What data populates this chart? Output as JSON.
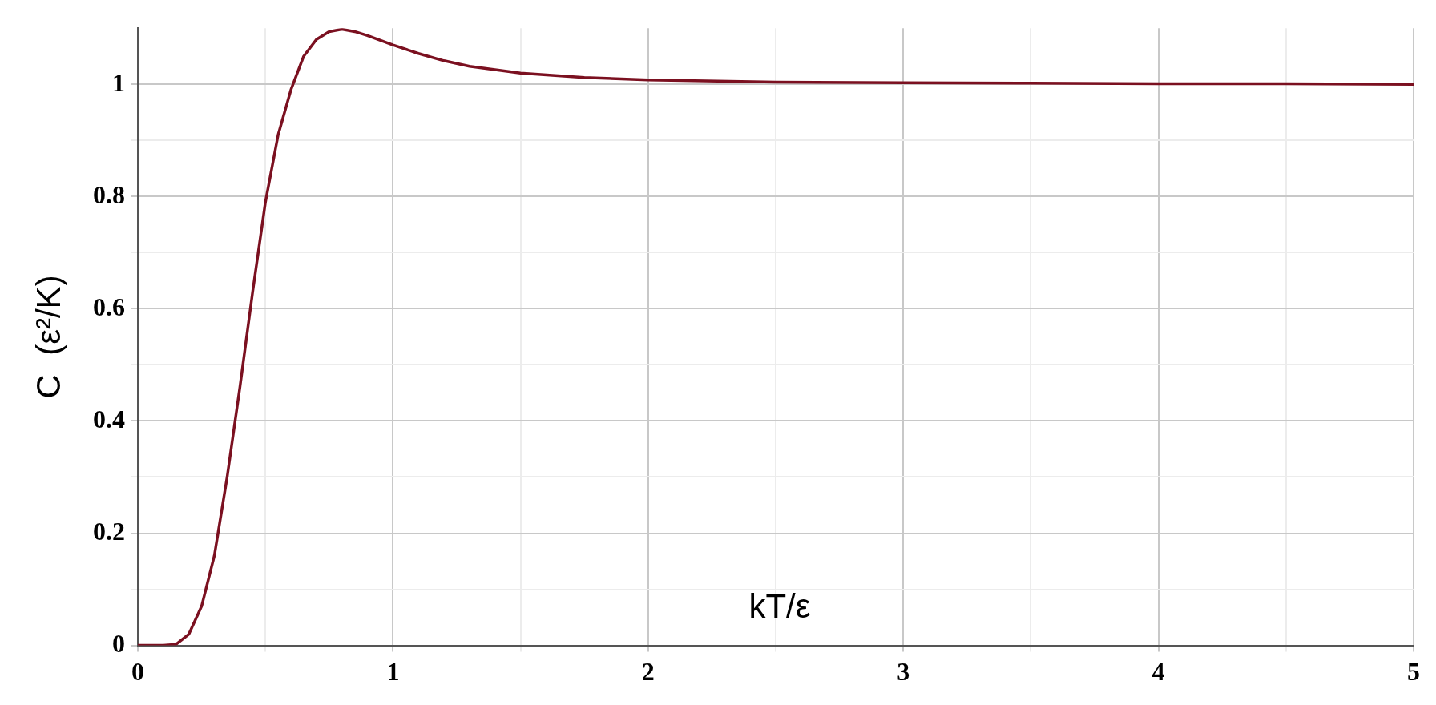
{
  "chart_data": {
    "type": "line",
    "xlabel": "kT/ε",
    "ylabel": "C  (ε²/K)",
    "series": [
      {
        "color": "#7b1020",
        "x": [
          0,
          0.1,
          0.15,
          0.2,
          0.25,
          0.3,
          0.35,
          0.4,
          0.45,
          0.5,
          0.55,
          0.6,
          0.65,
          0.7,
          0.75,
          0.8,
          0.85,
          0.9,
          1.0,
          1.1,
          1.2,
          1.3,
          1.5,
          1.75,
          2,
          2.5,
          3,
          3.5,
          4,
          4.5,
          5
        ],
        "values": [
          0,
          0,
          0.002,
          0.02,
          0.07,
          0.16,
          0.3,
          0.46,
          0.63,
          0.79,
          0.91,
          0.99,
          1.05,
          1.08,
          1.094,
          1.098,
          1.094,
          1.087,
          1.07,
          1.055,
          1.042,
          1.032,
          1.02,
          1.012,
          1.008,
          1.004,
          1.003,
          1.002,
          1.001,
          1.001,
          1.0
        ]
      }
    ],
    "xlim": [
      0,
      5
    ],
    "xticks": [
      0,
      {
        "value": 0.5,
        "label": null
      },
      1,
      {
        "value": 1.5,
        "label": null
      },
      2,
      {
        "value": 2.5,
        "label": null
      },
      3,
      {
        "value": 3.5,
        "label": null
      },
      4,
      {
        "value": 4.5,
        "label": null
      },
      5
    ],
    "ylim": [
      0,
      1.1
    ],
    "yticks": [
      0,
      {
        "value": 0.1,
        "label": null
      },
      0.2,
      {
        "value": 0.3,
        "label": null
      },
      0.4,
      {
        "value": 0.5,
        "label": null
      },
      0.6,
      {
        "value": 0.7,
        "label": null
      },
      0.8,
      {
        "value": 0.9,
        "label": null
      },
      1
    ],
    "grid": true,
    "legend": false,
    "marker": "none",
    "line_style": "solid"
  }
}
